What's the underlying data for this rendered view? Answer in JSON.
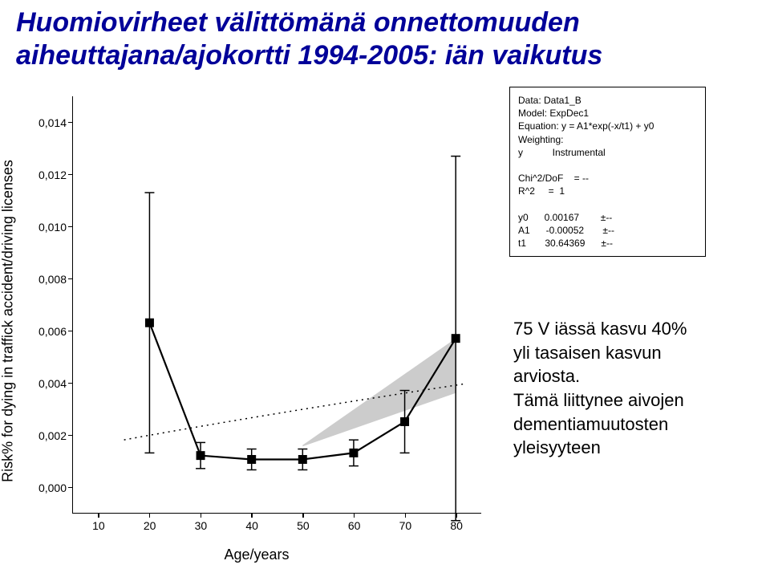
{
  "title_line1": "Huomiovirheet välittömänä onnettomuuden",
  "title_line2": "aiheuttajana/ajokortti 1994-2005: iän vaikutus",
  "chart": {
    "type": "line",
    "xlabel": "Age/years",
    "ylabel": "Risk% for dying in traffick accident/driving licenses",
    "xlim": [
      5,
      85
    ],
    "ylim": [
      -0.001,
      0.015
    ],
    "xticks": [
      10,
      20,
      30,
      40,
      50,
      60,
      70,
      80
    ],
    "yticks": [
      0.0,
      0.002,
      0.004,
      0.006,
      0.008,
      0.01,
      0.012,
      0.014
    ],
    "ytick_labels": [
      "0,000",
      "0,002",
      "0,004",
      "0,006",
      "0,008",
      "0,010",
      "0,012",
      "0,014"
    ],
    "series": {
      "x": [
        20,
        30,
        40,
        50,
        60,
        70,
        80
      ],
      "y": [
        0.0063,
        0.0012,
        0.00105,
        0.00105,
        0.0013,
        0.0025,
        0.0057
      ],
      "err": [
        0.005,
        0.0005,
        0.0004,
        0.0004,
        0.0005,
        0.0012,
        0.007
      ],
      "marker": "square",
      "marker_size": 11,
      "line_width": 2.2,
      "color": "#000000"
    },
    "fit_curve": {
      "type": "expdec-dotted",
      "y0": 0.00167,
      "A1": -0.00052,
      "t1": 30.64369,
      "color": "#000000",
      "linestyle": "dotted"
    },
    "uncertainty_region": {
      "fill": "#cccccc",
      "poly_x": [
        50,
        80,
        80,
        50
      ],
      "poly_y": [
        0.0016,
        0.0057,
        0.0036,
        0.00155
      ]
    },
    "background_color": "#ffffff"
  },
  "fitbox": {
    "lines": [
      "Data: Data1_B",
      "Model: ExpDec1",
      "Equation: y = A1*exp(-x/t1) + y0",
      "Weighting:",
      "y           Instrumental",
      "",
      "Chi^2/DoF    = --",
      "R^2     =  1",
      "",
      "y0      0.00167        ±--",
      "A1      -0.00052       ±--",
      "t1       30.64369      ±--"
    ]
  },
  "annotation": {
    "line1": "75 V iässä kasvu 40%",
    "line2": "yli tasaisen kasvun",
    "line3": "arviosta.",
    "line4": "Tämä liittynee aivojen",
    "line5": "dementiamuutosten",
    "line6": "yleisyyteen"
  }
}
